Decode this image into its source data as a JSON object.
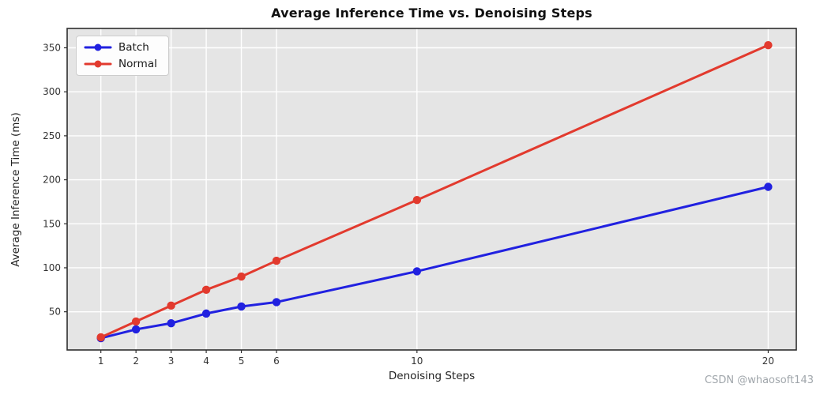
{
  "figure": {
    "watermark": "CSDN @whaosoft143"
  },
  "chart_data": {
    "type": "line",
    "title": "Average Inference Time vs. Denoising Steps",
    "xlabel": "Denoising Steps",
    "ylabel": "Average Inference Time (ms)",
    "x": [
      1,
      2,
      3,
      4,
      5,
      6,
      10,
      20
    ],
    "series": [
      {
        "name": "Batch",
        "color": "#2121e0",
        "values": [
          20,
          30,
          37,
          48,
          56,
          61,
          96,
          192
        ]
      },
      {
        "name": "Normal",
        "color": "#e23a2e",
        "values": [
          21,
          39,
          57,
          75,
          90,
          108,
          177,
          353
        ]
      }
    ],
    "xticks": [
      1,
      2,
      3,
      4,
      5,
      6,
      10,
      20
    ],
    "yticks": [
      50,
      100,
      150,
      200,
      250,
      300,
      350
    ],
    "xlim": [
      0.04,
      20.8
    ],
    "ylim": [
      6.6,
      372
    ],
    "grid": true,
    "legend": {
      "position": "upper-left",
      "entries": [
        "Batch",
        "Normal"
      ]
    },
    "colors": {
      "plot_bg": "#e5e5e5",
      "grid": "#ffffff",
      "spine": "#2e2e2e",
      "tick_label": "#333333"
    }
  }
}
